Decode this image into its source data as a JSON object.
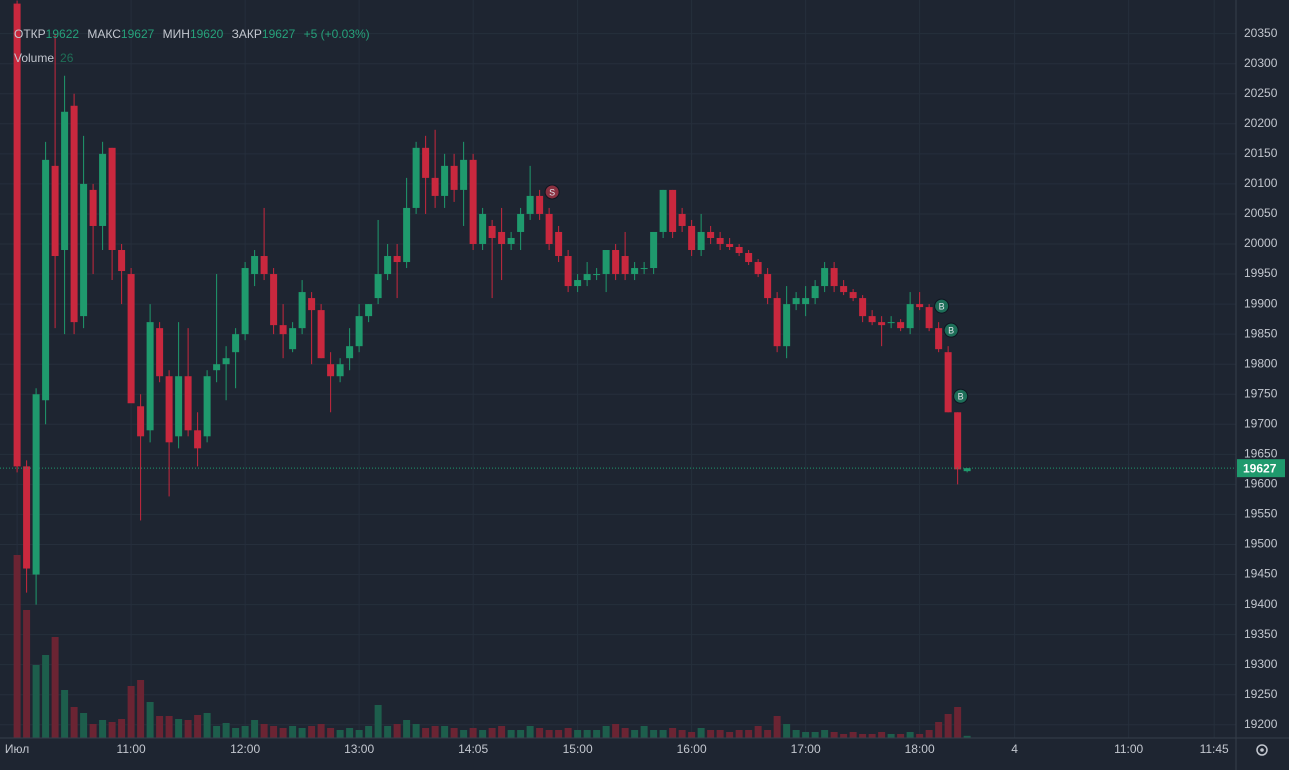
{
  "chart_data": {
    "type": "candlestick",
    "header": {
      "open_label": "ОТКР",
      "high_label": "МАКС",
      "low_label": "МИН",
      "close_label": "ЗАКР",
      "change": "+5 (+0.03%)",
      "volume_label": "Volume"
    },
    "open": [
      20400,
      19630,
      19450,
      19740,
      20130,
      19990,
      20230,
      19880,
      20090,
      20030,
      20160,
      19990,
      19950,
      19730,
      19690,
      19860,
      19780,
      19680,
      19780,
      19690,
      19680,
      19790,
      19800,
      19820,
      19850,
      19950,
      19980,
      19950,
      19865,
      19825,
      19860,
      19910,
      19890,
      19800,
      19780,
      19810,
      19830,
      19880,
      19910,
      19950,
      19980,
      19970,
      20060,
      20160,
      20110,
      20080,
      20130,
      20090,
      20140,
      20000,
      20030,
      20020,
      20000,
      20020,
      20050,
      20080,
      20050,
      20020,
      19980,
      19930,
      19940,
      19950,
      19950,
      19990,
      19980,
      19950,
      19960,
      19960,
      20020,
      20090,
      20050,
      20030,
      19990,
      20020,
      20010,
      20000,
      19995,
      19985,
      19970,
      19950,
      19910,
      19830,
      19900,
      19900,
      19910,
      19930,
      19960,
      19930,
      19920,
      19910,
      19880,
      19870,
      19870,
      19870,
      19860,
      19900,
      19895,
      19860,
      19820,
      19720,
      19622
    ],
    "high": [
      20405,
      19640,
      19760,
      20170,
      20350,
      20280,
      20250,
      20180,
      20100,
      20170,
      20160,
      20000,
      19960,
      19750,
      19900,
      19870,
      19790,
      19870,
      19860,
      19720,
      19790,
      19950,
      19830,
      19860,
      19970,
      19990,
      20060,
      19960,
      19900,
      19870,
      19940,
      19920,
      19900,
      19820,
      19810,
      19860,
      19900,
      19900,
      20040,
      20000,
      20000,
      20110,
      20170,
      20180,
      20190,
      20150,
      20150,
      20170,
      20150,
      20060,
      20040,
      20060,
      20020,
      20060,
      20130,
      20090,
      20060,
      20030,
      19990,
      19950,
      19970,
      19960,
      19990,
      20000,
      20020,
      19970,
      19970,
      20020,
      20090,
      20090,
      20060,
      20040,
      20050,
      20030,
      20020,
      20010,
      20000,
      19990,
      19975,
      19960,
      19920,
      19930,
      19920,
      19930,
      19940,
      19970,
      19970,
      19940,
      19925,
      19915,
      19890,
      19880,
      19880,
      19875,
      19920,
      19920,
      19900,
      19870,
      19830,
      19720,
      19627
    ],
    "low": [
      19620,
      19420,
      19400,
      19700,
      19860,
      19850,
      19850,
      19860,
      19950,
      19990,
      19940,
      19900,
      19740,
      19540,
      19670,
      19770,
      19580,
      19660,
      19680,
      19630,
      19670,
      19770,
      19740,
      19760,
      19840,
      19930,
      19940,
      19850,
      19810,
      19820,
      19850,
      19800,
      19810,
      19720,
      19770,
      19790,
      19820,
      19870,
      19900,
      19940,
      19910,
      19960,
      20050,
      20050,
      20060,
      20060,
      20070,
      20030,
      19990,
      19990,
      19910,
      19940,
      19990,
      19990,
      20040,
      20040,
      19990,
      19970,
      19920,
      19920,
      19930,
      19940,
      19920,
      19940,
      19940,
      19940,
      19950,
      19950,
      20010,
      20010,
      20020,
      19980,
      19980,
      20000,
      19990,
      19990,
      19980,
      19965,
      19945,
      19900,
      19820,
      19810,
      19890,
      19880,
      19900,
      19920,
      19920,
      19915,
      19905,
      19870,
      19865,
      19830,
      19860,
      19855,
      19850,
      19890,
      19855,
      19820,
      19720,
      19600,
      19620
    ],
    "close": [
      19630,
      19460,
      19750,
      20140,
      19980,
      20220,
      19870,
      20100,
      20030,
      20150,
      19990,
      19955,
      19735,
      19680,
      19870,
      19780,
      19670,
      19780,
      19690,
      19660,
      19780,
      19800,
      19810,
      19850,
      19960,
      19980,
      19950,
      19865,
      19850,
      19860,
      19920,
      19890,
      19810,
      19780,
      19800,
      19830,
      19880,
      19900,
      19950,
      19980,
      19970,
      20060,
      20160,
      20110,
      20080,
      20130,
      20090,
      20140,
      20000,
      20050,
      20010,
      20000,
      20010,
      20050,
      20080,
      20050,
      20000,
      19980,
      19930,
      19940,
      19950,
      19950,
      19990,
      19950,
      19950,
      19960,
      19960,
      20020,
      20090,
      20020,
      20030,
      19990,
      20020,
      20010,
      20000,
      19995,
      19985,
      19970,
      19950,
      19910,
      19830,
      19900,
      19910,
      19910,
      19930,
      19960,
      19930,
      19920,
      19910,
      19880,
      19870,
      19865,
      19870,
      19860,
      19900,
      19895,
      19860,
      19825,
      19720,
      19625,
      19627
    ],
    "volume": [
      2196,
      1536,
      876,
      996,
      1212,
      576,
      372,
      300,
      168,
      216,
      192,
      228,
      624,
      696,
      432,
      264,
      264,
      228,
      216,
      276,
      300,
      144,
      180,
      120,
      144,
      216,
      168,
      144,
      120,
      144,
      120,
      144,
      168,
      120,
      96,
      120,
      96,
      144,
      396,
      144,
      168,
      216,
      168,
      120,
      144,
      144,
      120,
      96,
      120,
      96,
      120,
      144,
      96,
      96,
      144,
      120,
      96,
      96,
      120,
      96,
      96,
      96,
      144,
      168,
      120,
      96,
      144,
      96,
      96,
      120,
      96,
      72,
      120,
      96,
      96,
      72,
      96,
      96,
      144,
      96,
      264,
      168,
      96,
      72,
      72,
      96,
      72,
      48,
      72,
      48,
      48,
      72,
      48,
      48,
      72,
      48,
      96,
      192,
      288,
      372,
      26
    ],
    "volume_ylim": [
      0,
      3600
    ],
    "up_color": "#1f9a6d",
    "down_color": "#c9283e",
    "volume_up_color": "#1d5e4c",
    "volume_down_color": "#6b2433",
    "ylim": [
      19178,
      20406
    ],
    "yticks": [
      19200,
      19250,
      19300,
      19350,
      19400,
      19450,
      19500,
      19550,
      19600,
      19650,
      19700,
      19750,
      19800,
      19850,
      19900,
      19950,
      20000,
      20050,
      20100,
      20150,
      20200,
      20250,
      20300,
      20350
    ],
    "xlim": [
      -1.8,
      128.3
    ],
    "xticks": [
      {
        "value": 0,
        "label": "Июл"
      },
      {
        "value": 12,
        "label": "11:00"
      },
      {
        "value": 24,
        "label": "12:00"
      },
      {
        "value": 36,
        "label": "13:00"
      },
      {
        "value": 48,
        "label": "14:05"
      },
      {
        "value": 59,
        "label": "15:00"
      },
      {
        "value": 71,
        "label": "16:00"
      },
      {
        "value": 83,
        "label": "17:00"
      },
      {
        "value": 95,
        "label": "18:00"
      },
      {
        "value": 105,
        "label": "4"
      },
      {
        "value": 117,
        "label": "11:00"
      },
      {
        "value": 126,
        "label": "11:45"
      }
    ],
    "grid": true,
    "last_price": 19627,
    "markers": [
      {
        "candle": 56,
        "label": "S",
        "color": "#8a3040"
      },
      {
        "candle": 97,
        "label": "B",
        "color": "#1d6e58"
      },
      {
        "candle": 98,
        "label": "B",
        "color": "#1d6e58"
      },
      {
        "candle": 99,
        "label": "B",
        "color": "#1d6e58"
      }
    ]
  }
}
